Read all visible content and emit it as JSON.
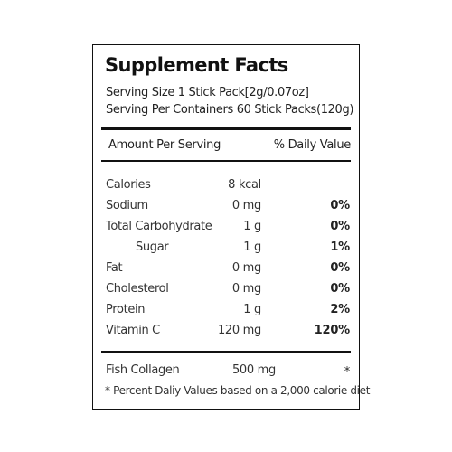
{
  "title": "Supplement Facts",
  "serving_size": "Serving Size 1 Stick Pack[2g/0.07oz]",
  "servings_per_container": "Serving Per Containers 60 Stick Packs(120g)",
  "header": {
    "amount_per_serving": "Amount Per Serving",
    "daily_value": "% Daily Value"
  },
  "nutrients": [
    {
      "name": "Calories",
      "amount": "8 kcal",
      "dv": ""
    },
    {
      "name": "Sodium",
      "amount": "0 mg",
      "dv": "0%"
    },
    {
      "name": "Total Carbohydrate",
      "amount": "1 g",
      "dv": "0%"
    },
    {
      "name": "Sugar",
      "amount": "1 g",
      "dv": "1%"
    },
    {
      "name": "Fat",
      "amount": "0 mg",
      "dv": "0%"
    },
    {
      "name": "Cholesterol",
      "amount": "0 mg",
      "dv": "0%"
    },
    {
      "name": "Protein",
      "amount": "1 g",
      "dv": "2%"
    },
    {
      "name": "Vitamin C",
      "amount": "120 mg",
      "dv": "120%"
    }
  ],
  "other": {
    "name": "Fish Collagen",
    "amount": "500 mg",
    "dv": "*"
  },
  "footnote": "* Percent Daliy Values based on a 2,000 calorie diet"
}
